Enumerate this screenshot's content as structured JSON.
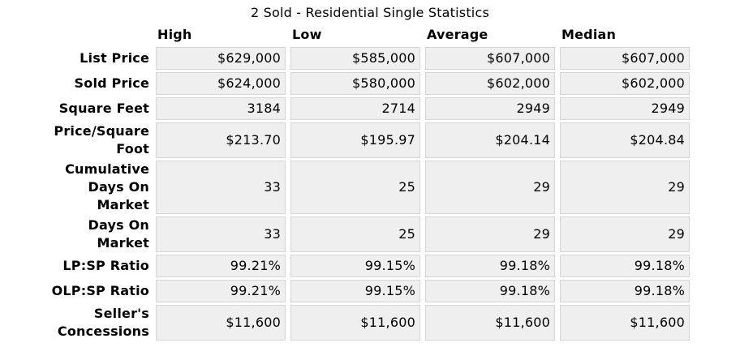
{
  "title": "2 Sold - Residential Single Statistics",
  "table": {
    "columns": [
      "High",
      "Low",
      "Average",
      "Median"
    ],
    "rows": [
      {
        "label": "List Price",
        "values": [
          "$629,000",
          "$585,000",
          "$607,000",
          "$607,000"
        ]
      },
      {
        "label": "Sold Price",
        "values": [
          "$624,000",
          "$580,000",
          "$602,000",
          "$602,000"
        ]
      },
      {
        "label": "Square Feet",
        "values": [
          "3184",
          "2714",
          "2949",
          "2949"
        ]
      },
      {
        "label": "Price/Square\nFoot",
        "values": [
          "$213.70",
          "$195.97",
          "$204.14",
          "$204.84"
        ]
      },
      {
        "label": "Cumulative\nDays On\nMarket",
        "values": [
          "33",
          "25",
          "29",
          "29"
        ]
      },
      {
        "label": "Days On\nMarket",
        "values": [
          "33",
          "25",
          "29",
          "29"
        ]
      },
      {
        "label": "LP:SP Ratio",
        "values": [
          "99.21%",
          "99.15%",
          "99.18%",
          "99.18%"
        ]
      },
      {
        "label": "OLP:SP Ratio",
        "values": [
          "99.21%",
          "99.15%",
          "99.18%",
          "99.18%"
        ]
      },
      {
        "label": "Seller's\nConcessions",
        "values": [
          "$11,600",
          "$11,600",
          "$11,600",
          "$11,600"
        ]
      }
    ]
  },
  "colors": {
    "cell_bg": "#efefef",
    "cell_border": "#d5d5d5",
    "text": "#000000",
    "page_bg": "#ffffff"
  }
}
